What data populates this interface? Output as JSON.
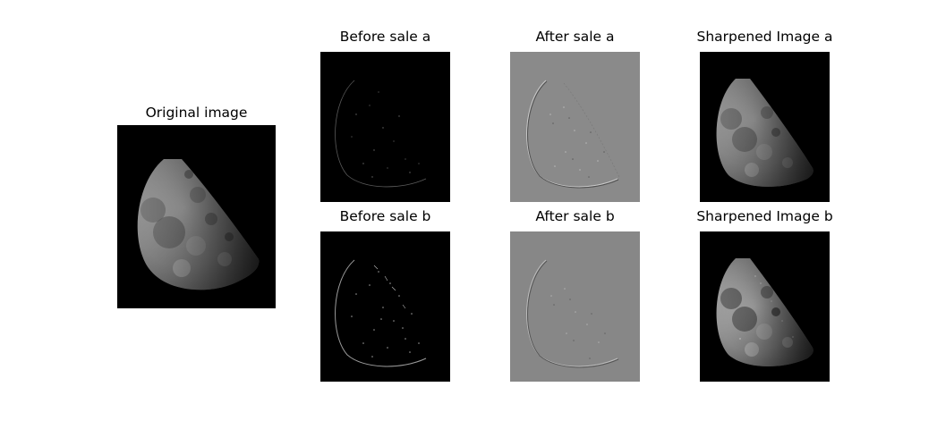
{
  "figure": {
    "panels": {
      "original": {
        "title": "Original image",
        "background": "#000000"
      },
      "before_a": {
        "title": "Before sale a",
        "background": "#000000"
      },
      "after_a": {
        "title": "After sale a",
        "background": "#8a8a8a"
      },
      "sharp_a": {
        "title": "Sharpened Image a",
        "background": "#000000"
      },
      "before_b": {
        "title": "Before sale b",
        "background": "#000000"
      },
      "after_b": {
        "title": "After sale b",
        "background": "#878787"
      },
      "sharp_b": {
        "title": "Sharpened Image b",
        "background": "#000000"
      }
    }
  }
}
